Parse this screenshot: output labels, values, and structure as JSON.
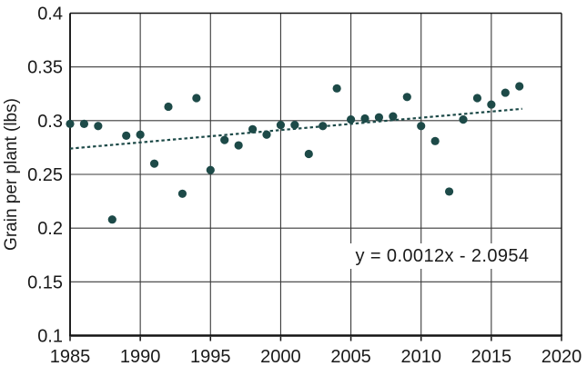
{
  "chart_data": {
    "type": "scatter",
    "title": "",
    "xlabel": "",
    "ylabel": "Grain per plant (lbs)",
    "xlim": [
      1985,
      2020
    ],
    "ylim": [
      0.1,
      0.4
    ],
    "grid": true,
    "legend": "none",
    "x_ticks": [
      1985,
      1990,
      1995,
      2000,
      2005,
      2010,
      2015,
      2020
    ],
    "x_tick_labels": [
      "1985",
      "1990",
      "1995",
      "2000",
      "2005",
      "2010",
      "2015",
      "2020"
    ],
    "y_ticks": [
      0.1,
      0.15,
      0.2,
      0.25,
      0.3,
      0.35,
      0.4
    ],
    "y_tick_labels": [
      "0.1",
      "0.15",
      "0.2",
      "0.25",
      "0.3",
      "0.35",
      "0.4"
    ],
    "points": [
      {
        "x": 1985,
        "y": 0.297
      },
      {
        "x": 1986,
        "y": 0.297
      },
      {
        "x": 1987,
        "y": 0.295
      },
      {
        "x": 1988,
        "y": 0.208
      },
      {
        "x": 1989,
        "y": 0.286
      },
      {
        "x": 1990,
        "y": 0.287
      },
      {
        "x": 1991,
        "y": 0.26
      },
      {
        "x": 1992,
        "y": 0.313
      },
      {
        "x": 1993,
        "y": 0.232
      },
      {
        "x": 1994,
        "y": 0.321
      },
      {
        "x": 1995,
        "y": 0.254
      },
      {
        "x": 1996,
        "y": 0.282
      },
      {
        "x": 1997,
        "y": 0.277
      },
      {
        "x": 1998,
        "y": 0.292
      },
      {
        "x": 1999,
        "y": 0.287
      },
      {
        "x": 2000,
        "y": 0.296
      },
      {
        "x": 2001,
        "y": 0.296
      },
      {
        "x": 2002,
        "y": 0.269
      },
      {
        "x": 2003,
        "y": 0.295
      },
      {
        "x": 2004,
        "y": 0.33
      },
      {
        "x": 2005,
        "y": 0.301
      },
      {
        "x": 2006,
        "y": 0.302
      },
      {
        "x": 2007,
        "y": 0.303
      },
      {
        "x": 2008,
        "y": 0.304
      },
      {
        "x": 2009,
        "y": 0.322
      },
      {
        "x": 2010,
        "y": 0.295
      },
      {
        "x": 2011,
        "y": 0.281
      },
      {
        "x": 2012,
        "y": 0.234
      },
      {
        "x": 2013,
        "y": 0.301
      },
      {
        "x": 2014,
        "y": 0.321
      },
      {
        "x": 2015,
        "y": 0.315
      },
      {
        "x": 2016,
        "y": 0.326
      },
      {
        "x": 2017,
        "y": 0.332
      }
    ],
    "trendline": {
      "style": "dotted",
      "x1": 1985,
      "y1": 0.274,
      "x2": 2017.2,
      "y2": 0.311,
      "equation_label": "y = 0.0012x - 2.0954"
    },
    "colors": {
      "point": "#1d4a48",
      "trendline": "#1d4a48",
      "grid": "#3a3a3a",
      "axis": "#141414",
      "text": "#1a1a1a",
      "background": "#ffffff"
    }
  }
}
